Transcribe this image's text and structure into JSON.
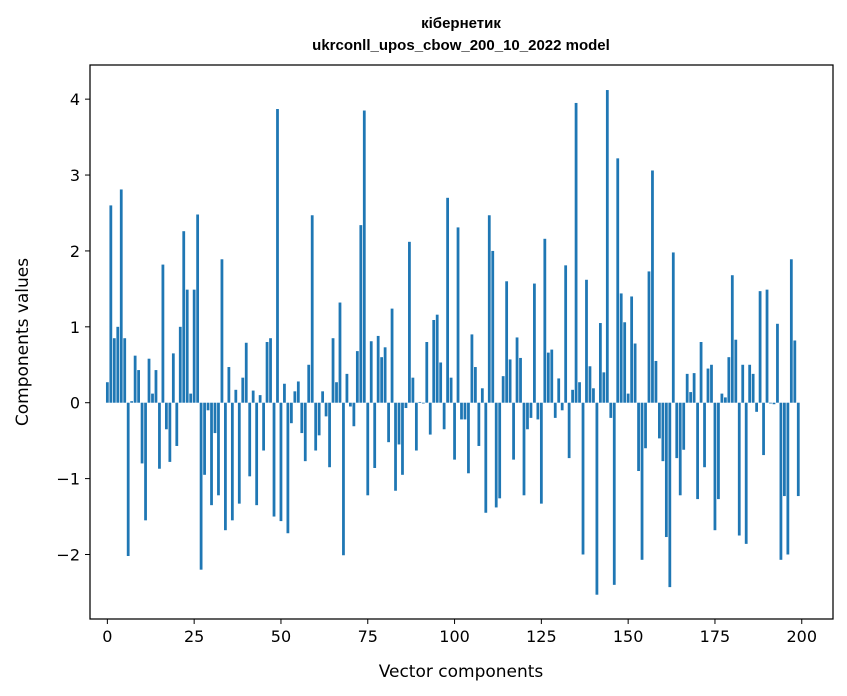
{
  "chart_data": {
    "type": "bar",
    "title": "кібернетик",
    "subtitle": "ukrconll_upos_cbow_200_10_2022 model",
    "xlabel": "Vector components",
    "ylabel": "Components values",
    "xlim": [
      -5,
      209
    ],
    "ylim": [
      -2.85,
      4.45
    ],
    "x_ticks": [
      0,
      25,
      50,
      75,
      100,
      125,
      150,
      175,
      200
    ],
    "y_ticks": [
      -2,
      -1,
      0,
      1,
      2,
      3,
      4
    ],
    "bar_color": "#1f77b4",
    "grid": false,
    "legend": "none",
    "values": [
      0.27,
      2.6,
      0.85,
      1.0,
      2.81,
      0.85,
      -2.02,
      0.02,
      0.62,
      0.43,
      -0.8,
      -1.55,
      0.58,
      0.12,
      0.43,
      -0.87,
      1.82,
      -0.35,
      -0.78,
      0.65,
      -0.57,
      1.0,
      2.26,
      1.49,
      0.12,
      1.49,
      2.48,
      -2.2,
      -0.95,
      -0.1,
      -1.35,
      -0.4,
      -1.22,
      1.89,
      -1.68,
      0.47,
      -1.55,
      0.17,
      -1.33,
      0.33,
      0.79,
      -0.97,
      0.16,
      -1.35,
      0.1,
      -0.63,
      0.8,
      0.85,
      -1.5,
      3.87,
      -1.56,
      0.25,
      -1.72,
      -0.27,
      0.15,
      0.28,
      -0.4,
      -0.77,
      0.5,
      2.47,
      -0.63,
      -0.43,
      0.15,
      -0.18,
      -0.85,
      0.85,
      0.27,
      1.32,
      -2.01,
      0.38,
      -0.05,
      -0.31,
      0.68,
      2.34,
      3.85,
      -1.22,
      0.81,
      -0.86,
      0.88,
      0.6,
      0.73,
      -0.52,
      1.24,
      -1.16,
      -0.55,
      -0.95,
      -0.07,
      2.12,
      0.33,
      -0.63,
      0.01,
      -0.01,
      0.8,
      -0.42,
      1.09,
      1.16,
      0.53,
      -0.35,
      2.7,
      0.33,
      -0.75,
      2.31,
      -0.22,
      -0.22,
      -0.93,
      0.9,
      0.47,
      -0.57,
      0.19,
      -1.45,
      2.47,
      2.0,
      -1.38,
      -1.26,
      0.35,
      1.6,
      0.57,
      -0.75,
      0.86,
      0.59,
      -1.22,
      -0.35,
      -0.2,
      1.57,
      -0.22,
      -1.33,
      2.16,
      0.66,
      0.7,
      -0.2,
      0.32,
      -0.1,
      1.81,
      -0.73,
      0.17,
      3.95,
      0.27,
      -2.0,
      1.62,
      0.48,
      0.19,
      -2.53,
      1.05,
      0.4,
      4.12,
      -0.2,
      -2.4,
      3.22,
      1.44,
      1.06,
      0.12,
      1.4,
      0.78,
      -0.9,
      -2.07,
      -0.6,
      1.73,
      3.06,
      0.55,
      -0.47,
      -0.77,
      -1.77,
      -2.43,
      1.98,
      -0.73,
      -1.22,
      -0.62,
      0.38,
      0.14,
      0.39,
      -1.27,
      0.8,
      -0.85,
      0.45,
      0.5,
      -1.68,
      -1.27,
      0.12,
      0.07,
      0.6,
      1.68,
      0.83,
      -1.75,
      0.5,
      -1.86,
      0.5,
      0.38,
      -0.12,
      1.47,
      -0.69,
      1.49,
      -0.01,
      -0.02,
      1.04,
      -2.07,
      -1.23,
      -2.0,
      1.89,
      0.82,
      -1.23
    ]
  }
}
